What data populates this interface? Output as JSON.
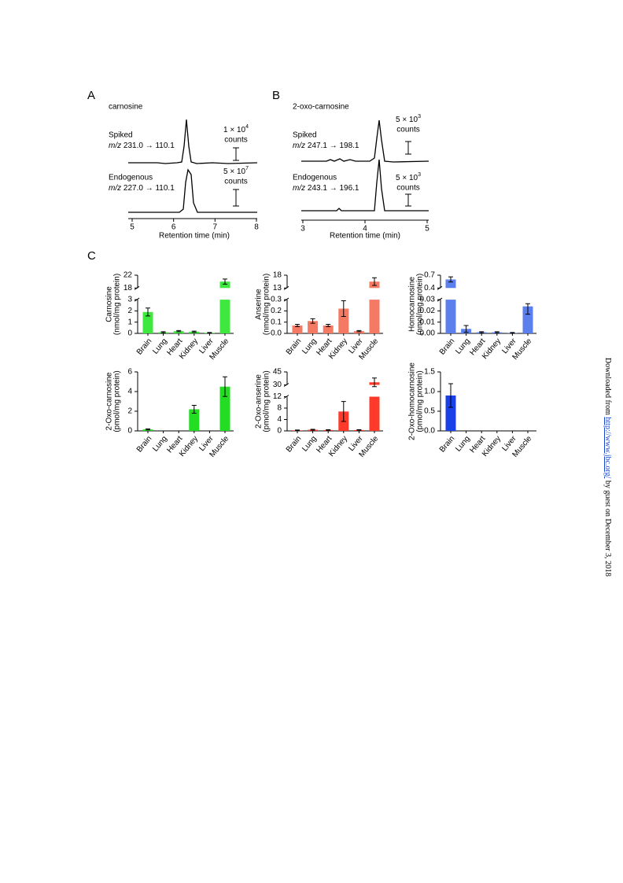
{
  "side_note": {
    "prefix": "Downloaded from",
    "link": "http://www.jbc.org/",
    "suffix": "by guest on December 3, 2018"
  },
  "panel_a": {
    "label": "A",
    "title": "carnosine",
    "x_label": "Retention time (min)",
    "xlim": [
      5,
      8
    ],
    "xticks": [
      5,
      6,
      7,
      8
    ],
    "traces": [
      {
        "name": "Spiked",
        "ion_prefix": "m/z",
        "transition": "231.0 → 110.1",
        "scale": {
          "base": "1 × 10",
          "exponent": "4",
          "unit": "counts"
        }
      },
      {
        "name": "Endogenous",
        "ion_prefix": "m/z",
        "transition": "227.0 → 110.1",
        "scale": {
          "base": "5 × 10",
          "exponent": "7",
          "unit": "counts"
        }
      }
    ]
  },
  "panel_b": {
    "label": "B",
    "title": "2-oxo-carnosine",
    "x_label": "Retention time (min)",
    "xlim": [
      3,
      5
    ],
    "xticks": [
      3,
      4,
      5
    ],
    "traces": [
      {
        "name": "Spiked",
        "ion_prefix": "m/z",
        "transition": "247.1 → 198.1",
        "scale": {
          "base": "5 × 10",
          "exponent": "3",
          "unit": "counts"
        }
      },
      {
        "name": "Endogenous",
        "ion_prefix": "m/z",
        "transition": "243.1 → 196.1",
        "scale": {
          "base": "5 × 10",
          "exponent": "3",
          "unit": "counts"
        }
      }
    ]
  },
  "panel_c": {
    "label": "C",
    "charts": [
      {
        "type": "bar",
        "y_label": [
          "Carnosine",
          "(nmol/mg protein)"
        ],
        "color": "#3ee83e",
        "categories": [
          "Brain",
          "Lung",
          "Heart",
          "Kidney",
          "Liver",
          "Muscle"
        ],
        "values": [
          1.9,
          0.1,
          0.2,
          0.15,
          0.05,
          20
        ],
        "errors": [
          0.35,
          0.05,
          0.05,
          0.05,
          0.03,
          0.8
        ],
        "segments": [
          {
            "ylim": [
              0,
              3
            ],
            "yticks": [
              0,
              1,
              2,
              3
            ]
          },
          {
            "ylim": [
              18,
              22
            ],
            "yticks": [
              18,
              22
            ]
          }
        ]
      },
      {
        "type": "bar",
        "y_label": [
          "Anserine",
          "(nmol/mg protein)"
        ],
        "color": "#f57a64",
        "categories": [
          "Brain",
          "Lung",
          "Heart",
          "Kidney",
          "Liver",
          "Muscle"
        ],
        "values": [
          0.07,
          0.11,
          0.07,
          0.22,
          0.02,
          15.5
        ],
        "errors": [
          0.01,
          0.02,
          0.01,
          0.07,
          0.005,
          1.5
        ],
        "segments": [
          {
            "ylim": [
              0,
              0.3
            ],
            "yticks": [
              {
                "value": 0,
                "label": "0.0"
              },
              0.1,
              0.2,
              0.3
            ]
          },
          {
            "ylim": [
              13,
              18
            ],
            "yticks": [
              13,
              18
            ]
          }
        ]
      },
      {
        "type": "bar",
        "y_label": [
          "Homocarnosine",
          "(nmol/mg protein)"
        ],
        "color": "#5b80ee",
        "categories": [
          "Brain",
          "Lung",
          "Heart",
          "Kidney",
          "Liver",
          "Muscle"
        ],
        "values": [
          0.6,
          0.004,
          0.001,
          0.001,
          0.0005,
          0.024
        ],
        "errors": [
          0.06,
          0.003,
          0.0005,
          0.0005,
          0.0003,
          0.007
        ],
        "segments": [
          {
            "ylim": [
              0,
              0.03
            ],
            "yticks": [
              {
                "value": 0,
                "label": "0.00"
              },
              0.01,
              0.02,
              0.03
            ]
          },
          {
            "ylim": [
              0.4,
              0.7
            ],
            "yticks": [
              0.4,
              0.7
            ]
          }
        ]
      },
      {
        "type": "bar",
        "y_label": [
          "2-Oxo-carnosine",
          "(pmol/mg protein)"
        ],
        "color": "#22dd22",
        "categories": [
          "Brain",
          "Lung",
          "Heart",
          "Kidney",
          "Liver",
          "Muscle"
        ],
        "values": [
          0.15,
          null,
          null,
          2.2,
          null,
          4.5
        ],
        "errors": [
          0.05,
          null,
          null,
          0.4,
          null,
          1.0
        ],
        "segments": [
          {
            "ylim": [
              0,
              6
            ],
            "yticks": [
              0,
              2,
              4,
              6
            ]
          }
        ]
      },
      {
        "type": "bar",
        "y_label": [
          "2-Oxo-anserine",
          "(pmol/mg protein)"
        ],
        "color": "#ff3a2a",
        "categories": [
          "Brain",
          "Lung",
          "Heart",
          "Kidney",
          "Liver",
          "Muscle"
        ],
        "values": [
          0.2,
          0.4,
          0.3,
          6.8,
          0.3,
          33
        ],
        "errors": [
          0.1,
          0.15,
          0.1,
          3.5,
          0.1,
          5
        ],
        "segments": [
          {
            "ylim": [
              0,
              12
            ],
            "yticks": [
              0,
              4,
              8,
              12
            ]
          },
          {
            "ylim": [
              30,
              45
            ],
            "yticks": [
              30,
              45
            ]
          }
        ]
      },
      {
        "type": "bar",
        "y_label": [
          "2-Oxo-homocarnosine",
          "(pmol/mg protein)"
        ],
        "color": "#1a40ea",
        "categories": [
          "Brain",
          "Lung",
          "Heart",
          "Kidney",
          "Liver",
          "Muscle"
        ],
        "values": [
          0.9,
          null,
          null,
          null,
          null,
          null
        ],
        "errors": [
          0.3,
          null,
          null,
          null,
          null,
          null
        ],
        "segments": [
          {
            "ylim": [
              0,
              1.5
            ],
            "yticks": [
              {
                "value": 0,
                "label": "0.0"
              },
              0.5,
              {
                "value": 1,
                "label": "1.0"
              },
              1.5
            ]
          }
        ]
      }
    ]
  }
}
